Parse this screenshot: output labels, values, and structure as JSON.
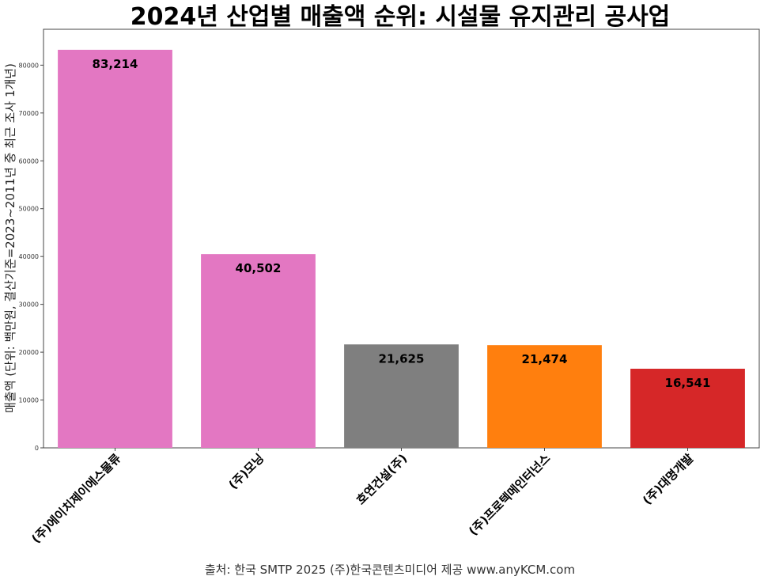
{
  "chart_data": {
    "type": "bar",
    "title": "2024년 산업별 매출액 순위: 시설물 유지관리 공사업",
    "xlabel": "",
    "ylabel": "매출액 (단위: 백만원, 결산기준=2023~2011년 중 최근 조사 1개년)",
    "categories": [
      "(주)에이치제이에스물류",
      "(주)모닝",
      "호연건설(주)",
      "(주)프로텍메인터넌스",
      "(주)대명개발"
    ],
    "values": [
      83214,
      40502,
      21625,
      21474,
      16541
    ],
    "value_labels": [
      "83,214",
      "40,502",
      "21,625",
      "21,474",
      "16,541"
    ],
    "colors": [
      "#e377c2",
      "#e377c2",
      "#7f7f7f",
      "#ff7f0e",
      "#d62728"
    ],
    "ylim": [
      0,
      87500
    ],
    "yticks": [
      0,
      10000,
      20000,
      30000,
      40000,
      50000,
      60000,
      70000,
      80000
    ],
    "grid": false,
    "source": "출처: 한국 SMTP 2025  (주)한국콘텐츠미디어 제공  www.anyKCM.com"
  }
}
